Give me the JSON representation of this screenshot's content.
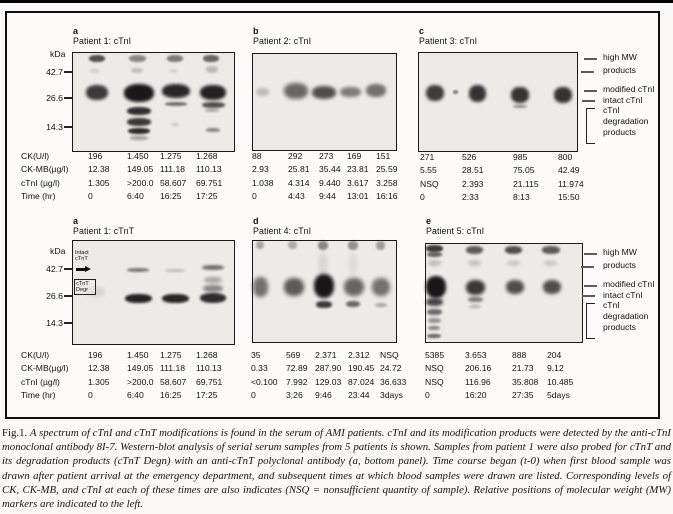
{
  "figure": {
    "kda": {
      "label": "kDa",
      "m42": "42.7",
      "m26": "26.6",
      "m14": "14.3"
    },
    "panels": [
      {
        "letter": "a",
        "title": "Patient 1: cTnI",
        "rows": [
          [
            "CK(U/l)",
            "196",
            "1.450",
            "1.275",
            "1.268"
          ],
          [
            "CK-MB(µg/l)",
            "12.38",
            "149.05",
            "111.18",
            "110.13"
          ],
          [
            "cTnI (µg/l)",
            "1.305",
            ">200.0",
            "58.607",
            "69.751"
          ],
          [
            "Time (hr)",
            "0",
            "6:40",
            "16:25",
            "17:25"
          ]
        ],
        "bands": [
          [
            16,
            2,
            16,
            7,
            0.7,
            1
          ],
          [
            56,
            2,
            17,
            7,
            0.45,
            1
          ],
          [
            94,
            2,
            16,
            7,
            0.5,
            1
          ],
          [
            130,
            2,
            16,
            7,
            0.6,
            1
          ],
          [
            17,
            16,
            10,
            4,
            0.12,
            1.2
          ],
          [
            58,
            15,
            12,
            5,
            0.2,
            1.2
          ],
          [
            96,
            16,
            9,
            4,
            0.1,
            1.2
          ],
          [
            133,
            13,
            12,
            7,
            0.22,
            1.2
          ],
          [
            13,
            32,
            22,
            15,
            0.8,
            1.6
          ],
          [
            51,
            31,
            30,
            18,
            0.95,
            1.6
          ],
          [
            89,
            31,
            28,
            14,
            0.88,
            1.6
          ],
          [
            127,
            32,
            26,
            15,
            0.9,
            1.6
          ],
          [
            92,
            49,
            22,
            4,
            0.55,
            1
          ],
          [
            129,
            49,
            23,
            6,
            0.7,
            1.2
          ],
          [
            54,
            54,
            24,
            8,
            0.85,
            1.2
          ],
          [
            54,
            65,
            24,
            8,
            0.8,
            1.2
          ],
          [
            55,
            75,
            22,
            6,
            0.85,
            1
          ],
          [
            57,
            83,
            18,
            4,
            0.35,
            1.2
          ],
          [
            98,
            70,
            8,
            3,
            0.15,
            1
          ],
          [
            132,
            56,
            14,
            3,
            0.3,
            1
          ],
          [
            133,
            75,
            14,
            4,
            0.45,
            1
          ]
        ]
      },
      {
        "letter": "b",
        "title": "Patient 2: cTnI",
        "rows": [
          [
            "88",
            "292",
            "273",
            "169",
            "151"
          ],
          [
            "2.93",
            "25.81",
            "35.44",
            "23.81",
            "25.59"
          ],
          [
            "1.038",
            "4.314",
            "9.440",
            "3.617",
            "3.258"
          ],
          [
            "0",
            "4:43",
            "9:44",
            "13:01",
            "16:16"
          ]
        ],
        "bands": [
          [
            3,
            34,
            13,
            8,
            0.22,
            1.6
          ],
          [
            31,
            29,
            24,
            16,
            0.6,
            2
          ],
          [
            59,
            32,
            24,
            13,
            0.7,
            1.8
          ],
          [
            87,
            33,
            21,
            10,
            0.5,
            1.8
          ],
          [
            113,
            30,
            20,
            13,
            0.55,
            1.8
          ]
        ]
      },
      {
        "letter": "c",
        "title": "Patient 3: cTnI",
        "rows": [
          [
            "271",
            "526",
            "985",
            "800"
          ],
          [
            "5.55",
            "28.51",
            "75.05",
            "42.49"
          ],
          [
            "NSQ",
            "2.393",
            "21.115",
            "11.974"
          ],
          [
            "0",
            "2:33",
            "8:13",
            "15:50"
          ]
        ],
        "bands": [
          [
            7,
            32,
            18,
            16,
            0.78,
            1.6
          ],
          [
            34,
            37,
            5,
            4,
            0.45,
            0.8
          ],
          [
            50,
            32,
            17,
            17,
            0.82,
            1.6
          ],
          [
            92,
            34,
            18,
            16,
            0.82,
            1.6
          ],
          [
            94,
            52,
            14,
            3,
            0.4,
            1
          ],
          [
            135,
            34,
            18,
            16,
            0.82,
            1.6
          ]
        ]
      },
      {
        "letter": "a",
        "title": "Patient 1: cTnT",
        "inner_intact": "Intact cTnT",
        "inner_degr": "cTnT Degr",
        "rows": [
          [
            "CK(U/l)",
            "196",
            "1.450",
            "1.275",
            "1.268"
          ],
          [
            "CK-MB(µg/l)",
            "12.38",
            "149.05",
            "111.18",
            "110.13"
          ],
          [
            "cTnI (µg/l)",
            "1.305",
            ">200.0",
            "58.607",
            "69.751"
          ],
          [
            "Time (hr)",
            "0",
            "6:40",
            "16:25",
            "17:25"
          ]
        ],
        "bands": [
          [
            14,
            46,
            18,
            10,
            0.1,
            2
          ],
          [
            54,
            27,
            22,
            4,
            0.5,
            1
          ],
          [
            52,
            53,
            27,
            9,
            0.9,
            1.2
          ],
          [
            92,
            28,
            20,
            3,
            0.22,
            1.2
          ],
          [
            89,
            53,
            27,
            9,
            0.88,
            1.2
          ],
          [
            129,
            24,
            22,
            5,
            0.55,
            1.2
          ],
          [
            131,
            36,
            18,
            6,
            0.3,
            1.6
          ],
          [
            130,
            44,
            20,
            7,
            0.45,
            1.6
          ],
          [
            127,
            52,
            26,
            10,
            0.85,
            1.2
          ]
        ]
      },
      {
        "letter": "d",
        "title": "Patient 4: cTnI",
        "rows": [
          [
            "35",
            "569",
            "2.371",
            "2.312",
            "NSQ"
          ],
          [
            "0.33",
            "72.89",
            "287.90",
            "190.45",
            "24.72"
          ],
          [
            "<0.100",
            "7.992",
            "129.03",
            "87.024",
            "36.633"
          ],
          [
            "0",
            "3:26",
            "9:46",
            "23:44",
            "3days"
          ]
        ],
        "bands": [
          [
            3,
            0,
            8,
            8,
            0.3,
            1
          ],
          [
            35,
            0,
            9,
            8,
            0.28,
            1
          ],
          [
            65,
            0,
            10,
            9,
            0.45,
            1
          ],
          [
            95,
            0,
            10,
            9,
            0.4,
            1
          ],
          [
            123,
            0,
            9,
            9,
            0.35,
            1
          ],
          [
            66,
            12,
            8,
            22,
            0.1,
            2.5
          ],
          [
            96,
            12,
            8,
            22,
            0.07,
            2.5
          ],
          [
            0,
            36,
            15,
            20,
            0.55,
            2
          ],
          [
            31,
            37,
            20,
            18,
            0.65,
            2
          ],
          [
            61,
            33,
            20,
            24,
            0.95,
            1.8
          ],
          [
            63,
            60,
            16,
            7,
            0.8,
            1.2
          ],
          [
            91,
            37,
            20,
            18,
            0.6,
            2
          ],
          [
            93,
            60,
            14,
            6,
            0.6,
            1.2
          ],
          [
            119,
            37,
            18,
            18,
            0.55,
            2
          ],
          [
            122,
            62,
            12,
            4,
            0.3,
            1.2
          ]
        ]
      },
      {
        "letter": "e",
        "title": "Patient 5: cTnI",
        "rows": [
          [
            "5385",
            "3.653",
            "888",
            "204"
          ],
          [
            "NSQ",
            "206.16",
            "21.73",
            "9.12"
          ],
          [
            "NSQ",
            "116.96",
            "35.808",
            "10.485"
          ],
          [
            "0",
            "16:20",
            "27:35",
            "5days"
          ]
        ],
        "bands": [
          [
            0,
            1,
            17,
            7,
            0.8,
            1
          ],
          [
            1,
            8,
            15,
            5,
            0.6,
            1
          ],
          [
            40,
            2,
            17,
            8,
            0.65,
            1.2
          ],
          [
            79,
            2,
            17,
            8,
            0.7,
            1.2
          ],
          [
            116,
            2,
            18,
            8,
            0.65,
            1.2
          ],
          [
            2,
            16,
            13,
            6,
            0.2,
            1.6
          ],
          [
            42,
            16,
            13,
            6,
            0.18,
            1.6
          ],
          [
            81,
            16,
            13,
            6,
            0.15,
            1.6
          ],
          [
            118,
            16,
            13,
            6,
            0.15,
            1.6
          ],
          [
            0,
            32,
            20,
            22,
            0.95,
            1.6
          ],
          [
            0,
            54,
            17,
            8,
            0.75,
            1.6
          ],
          [
            40,
            36,
            19,
            15,
            0.8,
            1.8
          ],
          [
            42,
            53,
            15,
            5,
            0.5,
            1.2
          ],
          [
            80,
            36,
            18,
            14,
            0.7,
            1.8
          ],
          [
            117,
            36,
            18,
            14,
            0.7,
            1.8
          ],
          [
            1,
            65,
            15,
            6,
            0.6,
            1.2
          ],
          [
            2,
            74,
            13,
            5,
            0.4,
            1.2
          ],
          [
            2,
            82,
            12,
            4,
            0.45,
            1
          ],
          [
            1,
            90,
            14,
            4,
            0.6,
            1
          ],
          [
            43,
            61,
            12,
            3,
            0.25,
            1.2
          ]
        ]
      }
    ],
    "annotations": {
      "high_mw_1": "high MW",
      "high_mw_2": "products",
      "modified": "modified cTnI",
      "intact": "intact cTnI",
      "deg_1": "cTnI",
      "deg_2": "degradation",
      "deg_3": "products"
    }
  },
  "caption": {
    "fig_label": "Fig.1.",
    "text": "A spectrum of cTnI and cTnT modifications is found in the serum of AMI patients. cTnI and its modification products were detected by the anti-cTnI monoclonal antibody 8I-7. Western-blot analysis of serial serum samples from 5 patients is shown. Samples from patient 1 were also probed for cTnT and its degradation products (cTnT Degn) with an anti-cTnT polyclonal antibody (a, bottom panel). Time course began (t-0) when first blood sample was drawn after patient arrival at the emergency department, and subsequent times at which blood samples were drawn are listed. Corresponding levels of CK, CK-MB, and cTnI at each of these times are also indicates (NSQ = nonsufficient quantity of sample). Relative positions of molecular weight (MW) markers are indicated to the left."
  }
}
